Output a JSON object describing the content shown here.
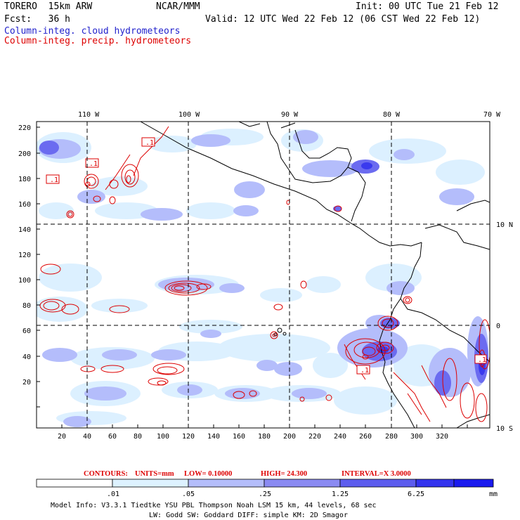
{
  "header": {
    "model": "TORERO  15km ARW",
    "center": "NCAR/MMM",
    "init": "Init: 00 UTC Tue 21 Feb 12",
    "fcst": "Fcst:   36 h",
    "valid": "Valid: 12 UTC Wed 22 Feb 12 (06 CST Wed 22 Feb 12)",
    "legend1": "Column-integ. cloud hydrometeors",
    "legend2": "Column-integ. precip. hydrometeors"
  },
  "map": {
    "lon_labels": [
      "110 W",
      "100 W",
      "90 W",
      "80 W",
      "70 W"
    ],
    "lat_labels": [
      "10 N",
      "0",
      "10 S"
    ],
    "x_ticks": [
      "20",
      "40",
      "60",
      "80",
      "100",
      "120",
      "140",
      "160",
      "180",
      "200",
      "220",
      "240",
      "260",
      "280",
      "300",
      "320"
    ],
    "y_ticks": [
      "220",
      "200",
      "180",
      "160",
      "140",
      "120",
      "100",
      "80",
      "60",
      "40",
      "20"
    ],
    "contour_labels": [
      ".1",
      ".1",
      ".1",
      ".1",
      ".1"
    ]
  },
  "contour_info": {
    "contours": "CONTOURS:",
    "units": "UNITS=mm",
    "low": "LOW= 0.10000",
    "high": "HIGH=  24.300",
    "interval": "INTERVAL=X  3.0000"
  },
  "colorbar": {
    "labels": [
      ".01",
      ".05",
      ".25",
      "1.25",
      "6.25"
    ],
    "unit": "mm",
    "colors": [
      "#ffffff",
      "#ddf2ff",
      "#b4bdfb",
      "#8a8af2",
      "#5c5cee",
      "#3333ee",
      "#1a1aee"
    ]
  },
  "footer": {
    "line1": "Model Info: V3.3.1    Tiedtke YSU PBL  Thompson     Noah LSM  15 km,   44 levels,   68 sec",
    "line2": "LW: Godd SW: Goddard DIFF: simple KM: 2D Smagor"
  }
}
